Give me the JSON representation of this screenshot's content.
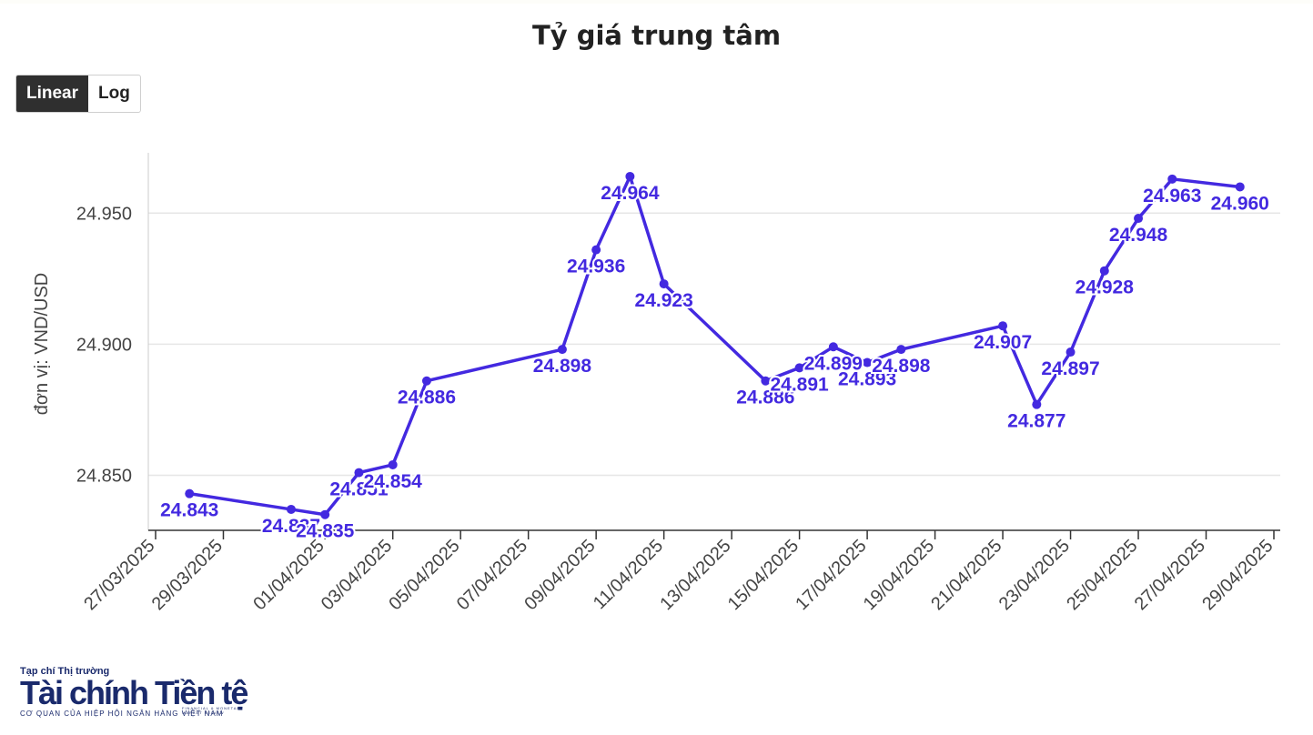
{
  "title": "Tỷ giá trung tâm",
  "scale_buttons": {
    "linear": "Linear",
    "log": "Log",
    "active": "linear"
  },
  "logo": {
    "line1": "Tạp chí Thị trường",
    "line2": "Tài chính Tiền tệ",
    "line3": "FINANCIAL & MONETARY MARKET REVIEW",
    "line4": "CƠ QUAN CỦA HIỆP HỘI NGÂN HÀNG VIỆT NAM"
  },
  "colors": {
    "series": "#4329e0",
    "grid": "#e6e6e6",
    "axis": "#333333",
    "tick_text": "#444444"
  },
  "chart_data": {
    "type": "line",
    "ylabel": "đơn vị: VND/USD",
    "xlabel": "",
    "ylim": [
      24.829,
      24.973
    ],
    "yticks": [
      24.85,
      24.9,
      24.95
    ],
    "ytick_labels": [
      "24.850",
      "24.900",
      "24.950"
    ],
    "xlim": [
      "2025-03-27",
      "2025-04-29"
    ],
    "xtick_labels": [
      "27/03/2025",
      "29/03/2025",
      "01/04/2025",
      "03/04/2025",
      "05/04/2025",
      "07/04/2025",
      "09/04/2025",
      "11/04/2025",
      "13/04/2025",
      "15/04/2025",
      "17/04/2025",
      "19/04/2025",
      "21/04/2025",
      "23/04/2025",
      "25/04/2025",
      "27/04/2025",
      "29/04/2025"
    ],
    "grid": true,
    "legend": "none",
    "series": [
      {
        "x": [
          "2025-03-28",
          "2025-03-31",
          "2025-04-01",
          "2025-04-02",
          "2025-04-03",
          "2025-04-04",
          "2025-04-08",
          "2025-04-09",
          "2025-04-10",
          "2025-04-11",
          "2025-04-14",
          "2025-04-15",
          "2025-04-16",
          "2025-04-17",
          "2025-04-18",
          "2025-04-21",
          "2025-04-22",
          "2025-04-23",
          "2025-04-24",
          "2025-04-25",
          "2025-04-26",
          "2025-04-28"
        ],
        "values": [
          24.843,
          24.837,
          24.835,
          24.851,
          24.854,
          24.886,
          24.898,
          24.936,
          24.964,
          24.923,
          24.886,
          24.891,
          24.899,
          24.893,
          24.898,
          24.907,
          24.877,
          24.897,
          24.928,
          24.948,
          24.963,
          24.96
        ],
        "labels": [
          "24.843",
          "24.837",
          "24.835",
          "24.851",
          "24.854",
          "24.886",
          "24.898",
          "24.936",
          "24.964",
          "24.923",
          "24.886",
          "24.891",
          "24.899",
          "24.893",
          "24.898",
          "24.907",
          "24.877",
          "24.897",
          "24.928",
          "24.948",
          "24.963",
          "24.960"
        ]
      }
    ]
  }
}
